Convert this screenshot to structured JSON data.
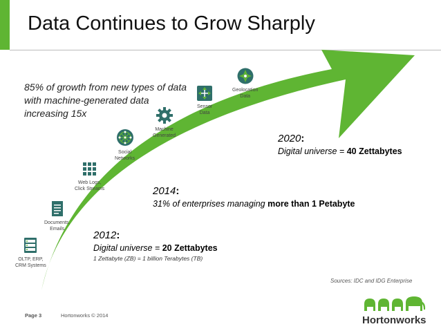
{
  "title": "Data Continues to Grow Sharply",
  "intro": "85% of growth from new types of data with machine-generated data increasing 15x",
  "sources": [
    {
      "label": "OLTP, ERP,\nCRM Systems",
      "icon": "server-icon"
    },
    {
      "label": "Documents,\nEmails",
      "icon": "document-icon"
    },
    {
      "label": "Web Logs,\nClick Streams",
      "icon": "grid-icon"
    },
    {
      "label": "Social\nNetworks",
      "icon": "network-icon"
    },
    {
      "label": "Machine\nGenerated",
      "icon": "gear-icon"
    },
    {
      "label": "Sensor\nData",
      "icon": "sensor-icon"
    },
    {
      "label": "Geolocation\nData",
      "icon": "compass-icon"
    }
  ],
  "milestones": {
    "y2012": {
      "year": "2012",
      "text": "Digital universe = ",
      "bold": "20 Zettabytes",
      "note": "1 Zettabyte (ZB) = 1 billion Terabytes (TB)"
    },
    "y2014": {
      "year": "2014",
      "text": "31% of enterprises managing ",
      "bold": "more than 1 Petabyte"
    },
    "y2020": {
      "year": "2020",
      "text": "Digital universe = ",
      "bold": "40 Zettabytes"
    }
  },
  "sources_note": "Sources: IDC and IDG Enterprise",
  "footer": {
    "page": "Page 3",
    "copyright": "Hortonworks © 2014",
    "brand": "Hortonworks"
  },
  "colors": {
    "accent": "#5fb533",
    "icon_bg": "#2f6f6a"
  }
}
